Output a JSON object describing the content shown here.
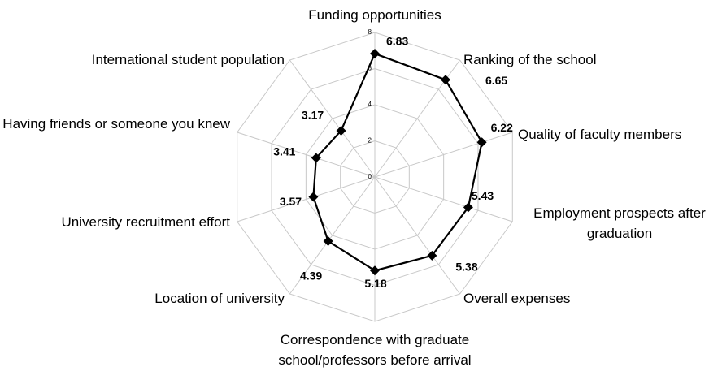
{
  "chart_data": {
    "type": "radar",
    "categories": [
      "Funding opportunities",
      "Ranking of the school",
      "Quality of faculty members",
      "Employment prospects after graduation",
      "Overall expenses",
      "Correspondence with graduate school/professors before arrival",
      "Location of university",
      "University recruitment effort",
      "Having friends or someone you knew",
      "International student population"
    ],
    "values": [
      6.83,
      6.65,
      6.22,
      5.43,
      5.38,
      5.18,
      4.39,
      3.57,
      3.41,
      3.17
    ],
    "color": "#000000",
    "rlim": [
      0,
      8
    ],
    "rticks": [
      0,
      2,
      4,
      6,
      8
    ],
    "grid": true
  }
}
